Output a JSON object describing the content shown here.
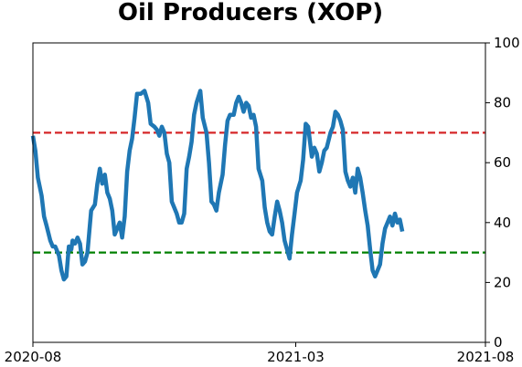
{
  "chart_data": {
    "type": "line",
    "title": "Oil Producers (XOP)",
    "xlabel": "",
    "ylabel": "",
    "x_range": [
      "2020-08-01",
      "2021-08-01"
    ],
    "x_ticks": [
      {
        "date": "2020-08-01",
        "label": "2020-08"
      },
      {
        "date": "2021-03-01",
        "label": "2021-03"
      },
      {
        "date": "2021-08-01",
        "label": "2021-08"
      }
    ],
    "ylim": [
      0,
      100
    ],
    "y_ticks": [
      0,
      20,
      40,
      60,
      80,
      100
    ],
    "y_axis_side": "right",
    "grid": false,
    "legend": "none",
    "reference_lines": [
      {
        "value": 70,
        "color": "#d62728",
        "style": "dashed"
      },
      {
        "value": 30,
        "color": "#008000",
        "style": "dashed"
      }
    ],
    "series": [
      {
        "color": "#1f77b4",
        "points": [
          [
            "2020-08-01",
            69
          ],
          [
            "2020-08-03",
            64
          ],
          [
            "2020-08-05",
            55
          ],
          [
            "2020-08-08",
            49
          ],
          [
            "2020-08-10",
            42
          ],
          [
            "2020-08-12",
            39
          ],
          [
            "2020-08-15",
            34
          ],
          [
            "2020-08-17",
            32
          ],
          [
            "2020-08-19",
            32
          ],
          [
            "2020-08-22",
            29
          ],
          [
            "2020-08-24",
            24
          ],
          [
            "2020-08-26",
            21
          ],
          [
            "2020-08-28",
            22
          ],
          [
            "2020-08-30",
            32
          ],
          [
            "2020-09-01",
            31
          ],
          [
            "2020-09-02",
            34
          ],
          [
            "2020-09-04",
            33
          ],
          [
            "2020-09-06",
            35
          ],
          [
            "2020-09-08",
            33
          ],
          [
            "2020-09-10",
            26
          ],
          [
            "2020-09-12",
            27
          ],
          [
            "2020-09-14",
            30
          ],
          [
            "2020-09-17",
            44
          ],
          [
            "2020-09-20",
            46
          ],
          [
            "2020-09-22",
            53
          ],
          [
            "2020-09-24",
            58
          ],
          [
            "2020-09-26",
            53
          ],
          [
            "2020-09-28",
            56
          ],
          [
            "2020-09-30",
            50
          ],
          [
            "2020-10-02",
            48
          ],
          [
            "2020-10-04",
            44
          ],
          [
            "2020-10-06",
            36
          ],
          [
            "2020-10-08",
            38
          ],
          [
            "2020-10-10",
            40
          ],
          [
            "2020-10-12",
            35
          ],
          [
            "2020-10-14",
            42
          ],
          [
            "2020-10-16",
            57
          ],
          [
            "2020-10-18",
            64
          ],
          [
            "2020-10-20",
            68
          ],
          [
            "2020-10-22",
            75
          ],
          [
            "2020-10-24",
            83
          ],
          [
            "2020-10-27",
            83
          ],
          [
            "2020-10-30",
            84
          ],
          [
            "2020-11-02",
            80
          ],
          [
            "2020-11-04",
            73
          ],
          [
            "2020-11-07",
            72
          ],
          [
            "2020-11-09",
            71
          ],
          [
            "2020-11-11",
            69
          ],
          [
            "2020-11-13",
            72
          ],
          [
            "2020-11-15",
            70
          ],
          [
            "2020-11-17",
            63
          ],
          [
            "2020-11-19",
            60
          ],
          [
            "2020-11-21",
            47
          ],
          [
            "2020-11-23",
            45
          ],
          [
            "2020-11-25",
            43
          ],
          [
            "2020-11-27",
            40
          ],
          [
            "2020-11-29",
            40
          ],
          [
            "2020-12-01",
            43
          ],
          [
            "2020-12-03",
            58
          ],
          [
            "2020-12-05",
            62
          ],
          [
            "2020-12-07",
            67
          ],
          [
            "2020-12-09",
            76
          ],
          [
            "2020-12-11",
            80
          ],
          [
            "2020-12-14",
            84
          ],
          [
            "2020-12-16",
            75
          ],
          [
            "2020-12-19",
            70
          ],
          [
            "2020-12-21",
            60
          ],
          [
            "2020-12-23",
            47
          ],
          [
            "2020-12-25",
            46
          ],
          [
            "2020-12-27",
            44
          ],
          [
            "2020-12-29",
            50
          ],
          [
            "2021-01-01",
            56
          ],
          [
            "2021-01-03",
            66
          ],
          [
            "2021-01-05",
            74
          ],
          [
            "2021-01-07",
            76
          ],
          [
            "2021-01-10",
            76
          ],
          [
            "2021-01-12",
            80
          ],
          [
            "2021-01-14",
            82
          ],
          [
            "2021-01-16",
            80
          ],
          [
            "2021-01-18",
            77
          ],
          [
            "2021-01-20",
            80
          ],
          [
            "2021-01-22",
            79
          ],
          [
            "2021-01-24",
            75
          ],
          [
            "2021-01-26",
            76
          ],
          [
            "2021-01-28",
            72
          ],
          [
            "2021-01-30",
            58
          ],
          [
            "2021-02-02",
            54
          ],
          [
            "2021-02-04",
            45
          ],
          [
            "2021-02-06",
            40
          ],
          [
            "2021-02-08",
            37
          ],
          [
            "2021-02-10",
            36
          ],
          [
            "2021-02-12",
            42
          ],
          [
            "2021-02-14",
            47
          ],
          [
            "2021-02-16",
            44
          ],
          [
            "2021-02-18",
            40
          ],
          [
            "2021-02-20",
            34
          ],
          [
            "2021-02-22",
            31
          ],
          [
            "2021-02-24",
            28
          ],
          [
            "2021-02-26",
            36
          ],
          [
            "2021-02-28",
            43
          ],
          [
            "2021-03-02",
            50
          ],
          [
            "2021-03-05",
            54
          ],
          [
            "2021-03-07",
            61
          ],
          [
            "2021-03-09",
            73
          ],
          [
            "2021-03-11",
            72
          ],
          [
            "2021-03-14",
            62
          ],
          [
            "2021-03-16",
            65
          ],
          [
            "2021-03-18",
            63
          ],
          [
            "2021-03-20",
            57
          ],
          [
            "2021-03-22",
            60
          ],
          [
            "2021-03-24",
            64
          ],
          [
            "2021-03-26",
            65
          ],
          [
            "2021-03-29",
            70
          ],
          [
            "2021-03-31",
            72
          ],
          [
            "2021-04-02",
            77
          ],
          [
            "2021-04-04",
            76
          ],
          [
            "2021-04-06",
            74
          ],
          [
            "2021-04-08",
            71
          ],
          [
            "2021-04-10",
            57
          ],
          [
            "2021-04-12",
            54
          ],
          [
            "2021-04-14",
            52
          ],
          [
            "2021-04-16",
            55
          ],
          [
            "2021-04-18",
            50
          ],
          [
            "2021-04-20",
            58
          ],
          [
            "2021-04-22",
            55
          ],
          [
            "2021-04-24",
            50
          ],
          [
            "2021-04-26",
            44
          ],
          [
            "2021-04-28",
            39
          ],
          [
            "2021-04-30",
            31
          ],
          [
            "2021-05-02",
            24
          ],
          [
            "2021-05-04",
            22
          ],
          [
            "2021-05-06",
            24
          ],
          [
            "2021-05-08",
            26
          ],
          [
            "2021-05-10",
            33
          ],
          [
            "2021-05-12",
            38
          ],
          [
            "2021-05-14",
            40
          ],
          [
            "2021-05-16",
            42
          ],
          [
            "2021-05-18",
            39
          ],
          [
            "2021-05-20",
            43
          ],
          [
            "2021-05-22",
            40
          ],
          [
            "2021-05-24",
            41
          ],
          [
            "2021-05-26",
            37
          ]
        ]
      }
    ]
  }
}
